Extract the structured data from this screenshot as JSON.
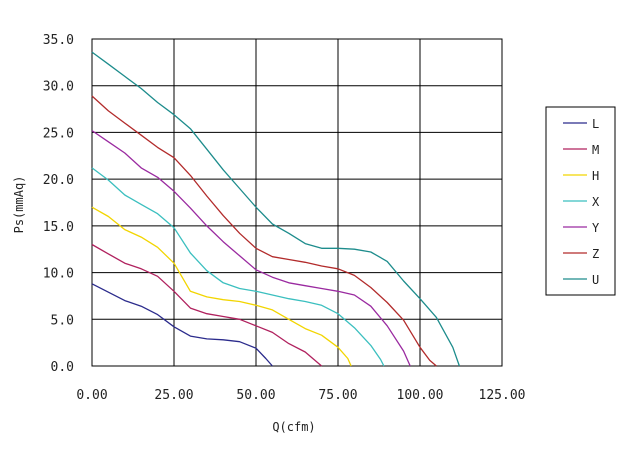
{
  "chart_data": {
    "type": "line",
    "xlabel": "Q(cfm)",
    "ylabel": "Ps(mmAq)",
    "xlim": [
      0,
      125
    ],
    "ylim": [
      0,
      35
    ],
    "x_ticks": [
      "0.00",
      "25.00",
      "50.00",
      "75.00",
      "100.00",
      "125.00"
    ],
    "y_ticks": [
      "0.0",
      "5.0",
      "10.0",
      "15.0",
      "20.0",
      "25.0",
      "30.0",
      "35.0"
    ],
    "grid": true,
    "legend_position": "right",
    "series": [
      {
        "name": "L",
        "color": "#2b2b8c",
        "x": [
          0,
          5,
          10,
          15,
          20,
          25,
          30,
          35,
          40,
          45,
          50,
          53,
          55
        ],
        "y": [
          8.8,
          7.9,
          7.0,
          6.4,
          5.5,
          4.2,
          3.2,
          2.9,
          2.8,
          2.6,
          1.9,
          0.8,
          0
        ]
      },
      {
        "name": "M",
        "color": "#b0215e",
        "x": [
          0,
          5,
          10,
          15,
          20,
          25,
          30,
          35,
          40,
          45,
          50,
          55,
          60,
          65,
          68,
          70
        ],
        "y": [
          13.0,
          12.0,
          11.0,
          10.4,
          9.6,
          8.0,
          6.2,
          5.6,
          5.3,
          5.0,
          4.3,
          3.6,
          2.4,
          1.5,
          0.6,
          0
        ]
      },
      {
        "name": "H",
        "color": "#f2d500",
        "x": [
          0,
          5,
          10,
          15,
          20,
          25,
          30,
          35,
          40,
          45,
          50,
          55,
          60,
          65,
          70,
          75,
          78,
          79
        ],
        "y": [
          17.0,
          16.0,
          14.6,
          13.8,
          12.7,
          11.0,
          8.0,
          7.4,
          7.1,
          6.9,
          6.5,
          6.0,
          5.0,
          4.0,
          3.3,
          2.0,
          0.8,
          0
        ]
      },
      {
        "name": "X",
        "color": "#3bbfbf",
        "x": [
          0,
          5,
          10,
          15,
          20,
          25,
          30,
          35,
          40,
          45,
          50,
          55,
          60,
          65,
          70,
          75,
          80,
          85,
          88,
          89
        ],
        "y": [
          21.2,
          19.9,
          18.3,
          17.3,
          16.3,
          14.8,
          12.1,
          10.2,
          8.9,
          8.3,
          8.0,
          7.6,
          7.2,
          6.9,
          6.5,
          5.6,
          4.1,
          2.2,
          0.7,
          0
        ]
      },
      {
        "name": "Y",
        "color": "#9a2aa0",
        "x": [
          0,
          5,
          10,
          15,
          20,
          25,
          30,
          35,
          40,
          45,
          50,
          55,
          60,
          65,
          70,
          75,
          80,
          85,
          90,
          95,
          97
        ],
        "y": [
          25.2,
          24.0,
          22.8,
          21.2,
          20.2,
          18.7,
          16.9,
          15.0,
          13.3,
          11.8,
          10.3,
          9.5,
          8.9,
          8.6,
          8.3,
          8.0,
          7.6,
          6.4,
          4.3,
          1.6,
          0
        ]
      },
      {
        "name": "Z",
        "color": "#b22b2b",
        "x": [
          0,
          5,
          10,
          15,
          20,
          25,
          30,
          35,
          40,
          45,
          50,
          55,
          60,
          65,
          70,
          75,
          80,
          85,
          90,
          95,
          100,
          103,
          105
        ],
        "y": [
          28.9,
          27.3,
          26.0,
          24.7,
          23.4,
          22.3,
          20.4,
          18.2,
          16.1,
          14.2,
          12.6,
          11.7,
          11.4,
          11.1,
          10.7,
          10.4,
          9.7,
          8.4,
          6.8,
          4.9,
          2.0,
          0.6,
          0
        ]
      },
      {
        "name": "U",
        "color": "#1d8c8c",
        "x": [
          0,
          5,
          10,
          15,
          20,
          25,
          30,
          35,
          40,
          45,
          50,
          55,
          60,
          65,
          70,
          75,
          80,
          85,
          90,
          95,
          100,
          105,
          110,
          112
        ],
        "y": [
          33.6,
          32.3,
          31.0,
          29.7,
          28.2,
          26.9,
          25.4,
          23.2,
          21.0,
          19.0,
          17.0,
          15.2,
          14.2,
          13.1,
          12.6,
          12.6,
          12.5,
          12.2,
          11.2,
          9.1,
          7.2,
          5.2,
          2.0,
          0
        ]
      }
    ]
  }
}
